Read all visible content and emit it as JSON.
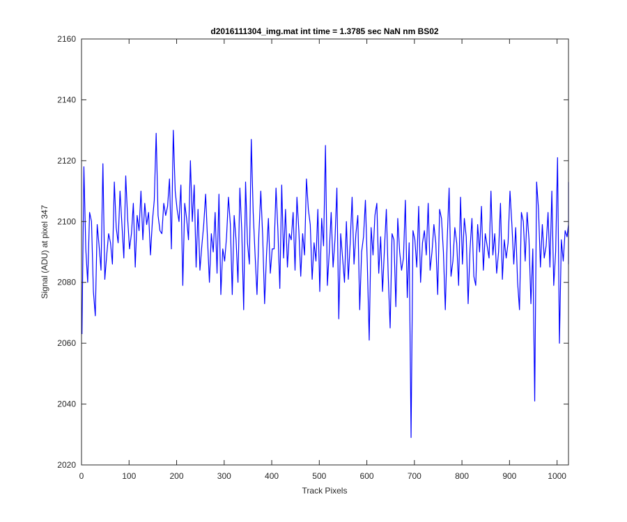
{
  "chart_data": {
    "type": "line",
    "title": "d2016111304_img.mat int time = 1.3785 sec  NaN nm BS02",
    "xlabel": "Track Pixels",
    "ylabel": "Signal (ADU) at pixel 347",
    "xlim": [
      0,
      1024
    ],
    "ylim": [
      2020,
      2160
    ],
    "xticks": [
      0,
      100,
      200,
      300,
      400,
      500,
      600,
      700,
      800,
      900,
      1000
    ],
    "yticks": [
      2020,
      2040,
      2060,
      2080,
      2100,
      2120,
      2140,
      2160
    ],
    "grid": false,
    "legend": "none",
    "series": [
      {
        "color": "#0000ff",
        "sample_step": 4,
        "x_start": 1,
        "values": [
          2063,
          2118,
          2091,
          2080,
          2103,
          2100,
          2077,
          2069,
          2099,
          2092,
          2084,
          2119,
          2081,
          2089,
          2096,
          2093,
          2086,
          2113,
          2098,
          2093,
          2110,
          2099,
          2088,
          2115,
          2101,
          2091,
          2096,
          2106,
          2085,
          2102,
          2097,
          2110,
          2094,
          2106,
          2099,
          2103,
          2089,
          2100,
          2107,
          2129,
          2102,
          2097,
          2096,
          2106,
          2102,
          2105,
          2114,
          2091,
          2130,
          2110,
          2104,
          2100,
          2112,
          2079,
          2106,
          2101,
          2094,
          2120,
          2100,
          2112,
          2085,
          2104,
          2084,
          2092,
          2099,
          2109,
          2094,
          2080,
          2096,
          2090,
          2103,
          2083,
          2109,
          2076,
          2091,
          2087,
          2095,
          2108,
          2099,
          2076,
          2102,
          2094,
          2080,
          2111,
          2097,
          2071,
          2113,
          2093,
          2086,
          2127,
          2103,
          2089,
          2076,
          2096,
          2110,
          2095,
          2073,
          2089,
          2101,
          2083,
          2091,
          2091,
          2111,
          2097,
          2078,
          2112,
          2088,
          2104,
          2085,
          2096,
          2094,
          2103,
          2084,
          2108,
          2097,
          2082,
          2096,
          2089,
          2114,
          2104,
          2099,
          2081,
          2093,
          2087,
          2104,
          2077,
          2101,
          2092,
          2125,
          2079,
          2090,
          2103,
          2085,
          2094,
          2111,
          2068,
          2096,
          2088,
          2080,
          2100,
          2081,
          2093,
          2108,
          2086,
          2096,
          2102,
          2071,
          2090,
          2095,
          2107,
          2086,
          2061,
          2098,
          2089,
          2102,
          2106,
          2083,
          2095,
          2077,
          2091,
          2104,
          2082,
          2065,
          2096,
          2094,
          2072,
          2101,
          2090,
          2084,
          2088,
          2107,
          2075,
          2093,
          2029,
          2097,
          2094,
          2085,
          2105,
          2080,
          2093,
          2097,
          2089,
          2106,
          2084,
          2090,
          2099,
          2093,
          2076,
          2104,
          2101,
          2090,
          2071,
          2094,
          2111,
          2082,
          2087,
          2098,
          2093,
          2079,
          2108,
          2086,
          2101,
          2095,
          2073,
          2091,
          2101,
          2082,
          2079,
          2099,
          2090,
          2105,
          2084,
          2096,
          2092,
          2088,
          2110,
          2089,
          2096,
          2083,
          2090,
          2106,
          2081,
          2094,
          2088,
          2093,
          2110,
          2099,
          2086,
          2098,
          2080,
          2071,
          2103,
          2100,
          2087,
          2103,
          2094,
          2073,
          2091,
          2041,
          2113,
          2104,
          2085,
          2099,
          2088,
          2092,
          2103,
          2085,
          2110,
          2079,
          2090,
          2121,
          2060,
          2094,
          2087,
          2097,
          2095,
          2099,
          2086,
          2113
        ]
      }
    ]
  }
}
